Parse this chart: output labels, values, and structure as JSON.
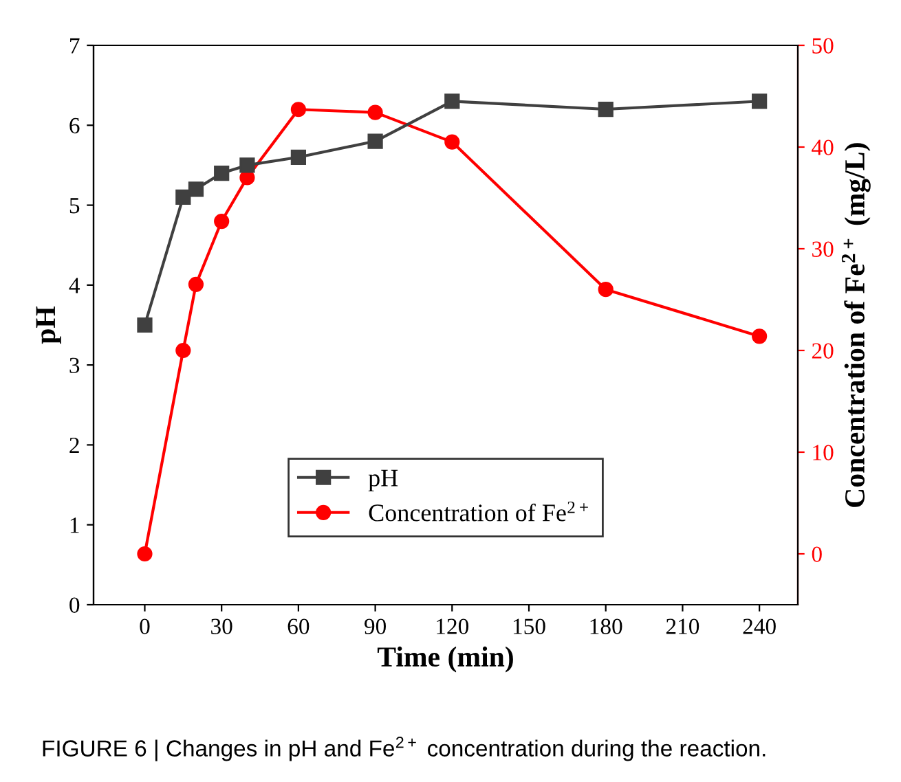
{
  "chart_data": {
    "type": "line",
    "xlabel": "Time (min)",
    "ylabel": "pH",
    "y2label": "Concentration of Fe$^{2+}$ (mg/L)",
    "x": [
      0,
      15,
      20,
      30,
      40,
      60,
      90,
      120,
      180,
      240
    ],
    "series": [
      {
        "name": "pH",
        "color": "#404040",
        "marker": "square",
        "values": [
          3.5,
          5.1,
          5.2,
          5.4,
          5.5,
          5.6,
          5.8,
          6.3,
          6.2,
          6.3
        ]
      },
      {
        "name": "Concentration of Fe$^{2+}$",
        "color": "#ff0000",
        "marker": "circle",
        "axis": "y2",
        "values": [
          0,
          20,
          26.5,
          32.7,
          37,
          43.7,
          43.4,
          40.5,
          26,
          21.4
        ]
      }
    ],
    "xlim": [
      -20,
      255
    ],
    "xticks": [
      0,
      30,
      60,
      90,
      120,
      150,
      180,
      210,
      240
    ],
    "ylim": [
      0,
      7
    ],
    "yticks": [
      0,
      1,
      2,
      3,
      4,
      5,
      6,
      7
    ],
    "y2lim": [
      -5,
      50
    ],
    "y2ticks": [
      0,
      10,
      20,
      30,
      40,
      50
    ],
    "legend": "bottom",
    "grid": false,
    "line_style": "solid",
    "annotations": [
      "FIGURE 6 | Changes in pH and Fe$^{2+}$ concentration during the reaction."
    ]
  }
}
